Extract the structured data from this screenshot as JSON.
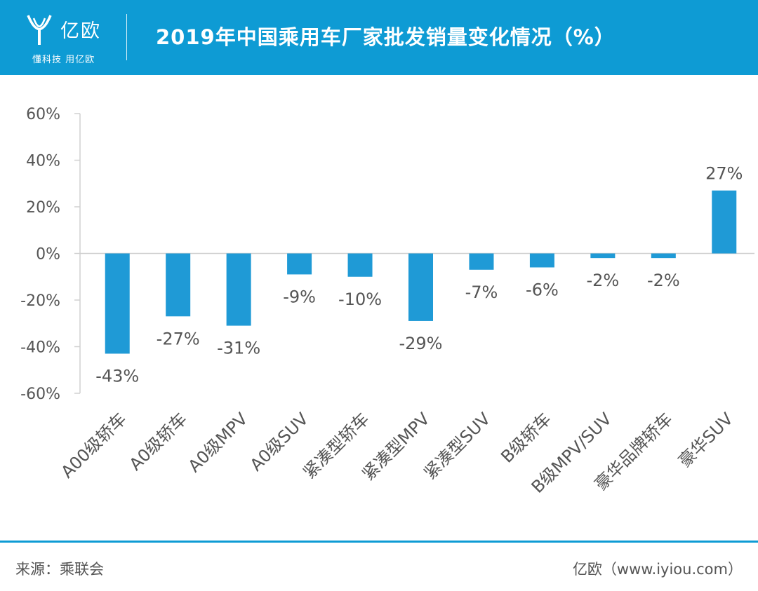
{
  "header": {
    "logo_text": "亿欧",
    "logo_sub": "懂科技 用亿欧",
    "title": "2019年中国乘用车厂家批发销量变化情况（%）"
  },
  "footer": {
    "source": "来源：乘联会",
    "credit": "亿欧（www.iyiou.com）"
  },
  "colors": {
    "header_bg": "#0e9bd4",
    "bar": "#1f9ad6",
    "text": "#555555",
    "axis": "#d0d0d0"
  },
  "chart_data": {
    "type": "bar",
    "title": "2019年中国乘用车厂家批发销量变化情况（%）",
    "xlabel": "",
    "ylabel": "",
    "ylim": [
      -60,
      60
    ],
    "yticks": [
      60,
      40,
      20,
      0,
      -20,
      -40,
      -60
    ],
    "ytick_labels": [
      "60%",
      "40%",
      "20%",
      "0%",
      "-20%",
      "-40%",
      "-60%"
    ],
    "grid": false,
    "categories": [
      "A00级轿车",
      "A0级轿车",
      "A0级MPV",
      "A0级SUV",
      "紧凑型轿车",
      "紧凑型MPV",
      "紧凑型SUV",
      "B级轿车",
      "B级MPV/SUV",
      "豪华品牌轿车",
      "豪华SUV"
    ],
    "values": [
      -43,
      -27,
      -31,
      -9,
      -10,
      -29,
      -7,
      -6,
      -2,
      -2,
      27
    ],
    "data_labels": [
      "-43%",
      "-27%",
      "-31%",
      "-9%",
      "-10%",
      "-29%",
      "-7%",
      "-6%",
      "-2%",
      "-2%",
      "27%"
    ]
  }
}
